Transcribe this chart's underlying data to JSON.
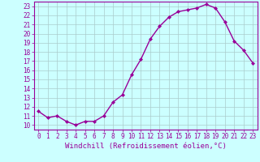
{
  "x": [
    0,
    1,
    2,
    3,
    4,
    5,
    6,
    7,
    8,
    9,
    10,
    11,
    12,
    13,
    14,
    15,
    16,
    17,
    18,
    19,
    20,
    21,
    22,
    23
  ],
  "y": [
    11.5,
    10.8,
    11.0,
    10.4,
    10.0,
    10.4,
    10.4,
    11.0,
    12.5,
    13.3,
    15.5,
    17.2,
    19.4,
    20.8,
    21.8,
    22.4,
    22.6,
    22.8,
    23.2,
    22.8,
    21.3,
    19.2,
    18.2,
    16.8
  ],
  "line_color": "#990099",
  "marker": "D",
  "marker_size": 2.0,
  "bg_color": "#ccffff",
  "grid_color": "#aacccc",
  "xlabel": "Windchill (Refroidissement éolien,°C)",
  "xlim": [
    -0.5,
    23.5
  ],
  "ylim": [
    9.5,
    23.5
  ],
  "yticks": [
    10,
    11,
    12,
    13,
    14,
    15,
    16,
    17,
    18,
    19,
    20,
    21,
    22,
    23
  ],
  "xticks": [
    0,
    1,
    2,
    3,
    4,
    5,
    6,
    7,
    8,
    9,
    10,
    11,
    12,
    13,
    14,
    15,
    16,
    17,
    18,
    19,
    20,
    21,
    22,
    23
  ],
  "tick_color": "#990099",
  "tick_fontsize": 5.5,
  "xlabel_fontsize": 6.5,
  "line_width": 1.0
}
